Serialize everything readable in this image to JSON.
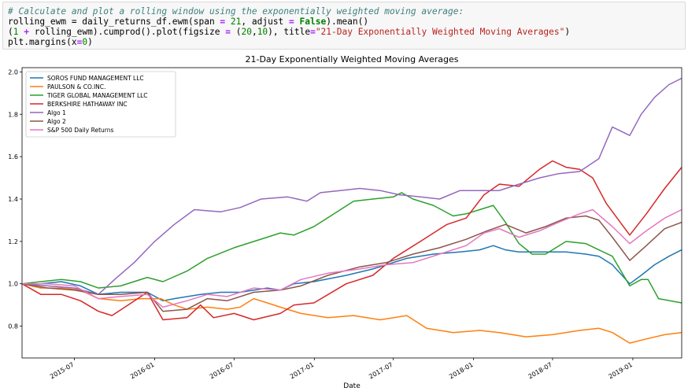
{
  "code": {
    "comment": "# Calculate and plot a rolling window using the exponentially weighted moving average:",
    "line2": {
      "a": "rolling_ewm = daily_returns_df.ewm(span ",
      "eq1": "=",
      "b": " ",
      "n21": "21",
      "c": ", adjust ",
      "eq2": "=",
      "d": " ",
      "kw": "False",
      "e": ").mean()"
    },
    "line3": {
      "a": "(",
      "one": "1",
      "b": " ",
      "plus": "+",
      "c": " rolling_ewm).cumprod().plot(figsize ",
      "eq": "=",
      "d": " (",
      "n20a": "20",
      "e": ",",
      "n10": "10",
      "f": "), title",
      "eq2": "=",
      "str": "\"21-Day Exponentially Weighted Moving Averages\"",
      "g": ")"
    },
    "line4": {
      "a": "plt.margins(x",
      "eq": "=",
      "zero": "0",
      "b": ")"
    }
  },
  "chart_data": {
    "type": "line",
    "title": "21-Day Exponentially Weighted Moving Averages",
    "xlabel": "Date",
    "ylabel": "",
    "x_range": [
      "2015-03-03",
      "2019-04-23"
    ],
    "ylim": [
      0.65,
      2.02
    ],
    "yticks": [
      0.8,
      1.0,
      1.2,
      1.4,
      1.6,
      1.8,
      2.0
    ],
    "ytick_labels": [
      "0.8",
      "1.0",
      "1.2",
      "1.4",
      "1.6",
      "1.8",
      "2.0"
    ],
    "xticks": [
      "2015-07-01",
      "2016-01-01",
      "2016-07-01",
      "2017-01-01",
      "2017-07-01",
      "2018-01-01",
      "2018-07-01",
      "2019-01-01"
    ],
    "xtick_labels": [
      "2015-07",
      "2016-01",
      "2016-07",
      "2017-01",
      "2017-07",
      "2018-01",
      "2018-07",
      "2019-01"
    ],
    "grid": false,
    "legend_position": "top-left",
    "series": [
      {
        "name": "SOROS FUND MANAGEMENT LLC",
        "color": "#1f77b4",
        "points": [
          [
            "2015-03-03",
            1.0
          ],
          [
            "2015-04-15",
            1.0
          ],
          [
            "2015-06-01",
            1.01
          ],
          [
            "2015-07-15",
            0.99
          ],
          [
            "2015-08-25",
            0.95
          ],
          [
            "2015-10-15",
            0.96
          ],
          [
            "2015-12-15",
            0.96
          ],
          [
            "2016-01-20",
            0.92
          ],
          [
            "2016-02-15",
            0.93
          ],
          [
            "2016-04-15",
            0.95
          ],
          [
            "2016-06-01",
            0.96
          ],
          [
            "2016-07-15",
            0.96
          ],
          [
            "2016-09-15",
            0.98
          ],
          [
            "2016-10-15",
            0.97
          ],
          [
            "2016-11-15",
            1.0
          ],
          [
            "2016-12-31",
            1.01
          ],
          [
            "2017-03-15",
            1.04
          ],
          [
            "2017-05-15",
            1.07
          ],
          [
            "2017-08-01",
            1.12
          ],
          [
            "2017-10-01",
            1.14
          ],
          [
            "2017-12-01",
            1.15
          ],
          [
            "2018-01-15",
            1.16
          ],
          [
            "2018-02-15",
            1.18
          ],
          [
            "2018-03-15",
            1.16
          ],
          [
            "2018-04-15",
            1.15
          ],
          [
            "2018-06-15",
            1.15
          ],
          [
            "2018-08-01",
            1.15
          ],
          [
            "2018-09-15",
            1.14
          ],
          [
            "2018-10-15",
            1.13
          ],
          [
            "2018-11-15",
            1.09
          ],
          [
            "2018-12-25",
            1.0
          ],
          [
            "2019-01-20",
            1.04
          ],
          [
            "2019-02-20",
            1.09
          ],
          [
            "2019-03-25",
            1.13
          ],
          [
            "2019-04-23",
            1.16
          ]
        ]
      },
      {
        "name": "PAULSON & CO.INC.",
        "color": "#ff7f0e",
        "points": [
          [
            "2015-03-03",
            1.0
          ],
          [
            "2015-04-15",
            0.98
          ],
          [
            "2015-06-01",
            0.98
          ],
          [
            "2015-07-15",
            0.97
          ],
          [
            "2015-08-25",
            0.93
          ],
          [
            "2015-10-15",
            0.92
          ],
          [
            "2015-12-01",
            0.93
          ],
          [
            "2016-01-15",
            0.93
          ],
          [
            "2016-02-15",
            0.9
          ],
          [
            "2016-03-15",
            0.88
          ],
          [
            "2016-05-01",
            0.89
          ],
          [
            "2016-06-15",
            0.88
          ],
          [
            "2016-07-15",
            0.89
          ],
          [
            "2016-08-15",
            0.93
          ],
          [
            "2016-09-15",
            0.91
          ],
          [
            "2016-10-15",
            0.89
          ],
          [
            "2016-12-01",
            0.86
          ],
          [
            "2017-02-01",
            0.84
          ],
          [
            "2017-04-01",
            0.85
          ],
          [
            "2017-06-01",
            0.83
          ],
          [
            "2017-08-01",
            0.85
          ],
          [
            "2017-09-15",
            0.79
          ],
          [
            "2017-11-15",
            0.77
          ],
          [
            "2018-01-15",
            0.78
          ],
          [
            "2018-03-01",
            0.77
          ],
          [
            "2018-05-01",
            0.75
          ],
          [
            "2018-07-01",
            0.76
          ],
          [
            "2018-09-01",
            0.78
          ],
          [
            "2018-10-15",
            0.79
          ],
          [
            "2018-11-15",
            0.77
          ],
          [
            "2018-12-25",
            0.72
          ],
          [
            "2019-02-01",
            0.74
          ],
          [
            "2019-03-15",
            0.76
          ],
          [
            "2019-04-23",
            0.77
          ]
        ]
      },
      {
        "name": "TIGER GLOBAL MANAGEMENT LLC",
        "color": "#2ca02c",
        "points": [
          [
            "2015-03-03",
            1.0
          ],
          [
            "2015-04-15",
            1.01
          ],
          [
            "2015-06-01",
            1.02
          ],
          [
            "2015-07-15",
            1.01
          ],
          [
            "2015-08-25",
            0.98
          ],
          [
            "2015-10-15",
            0.99
          ],
          [
            "2015-12-15",
            1.03
          ],
          [
            "2016-01-20",
            1.01
          ],
          [
            "2016-03-15",
            1.06
          ],
          [
            "2016-05-01",
            1.12
          ],
          [
            "2016-07-01",
            1.17
          ],
          [
            "2016-09-15",
            1.22
          ],
          [
            "2016-10-15",
            1.24
          ],
          [
            "2016-11-15",
            1.23
          ],
          [
            "2016-12-31",
            1.27
          ],
          [
            "2017-02-15",
            1.33
          ],
          [
            "2017-04-01",
            1.39
          ],
          [
            "2017-05-15",
            1.4
          ],
          [
            "2017-07-01",
            1.41
          ],
          [
            "2017-07-20",
            1.43
          ],
          [
            "2017-08-15",
            1.4
          ],
          [
            "2017-10-01",
            1.37
          ],
          [
            "2017-11-15",
            1.32
          ],
          [
            "2017-12-15",
            1.33
          ],
          [
            "2018-01-15",
            1.35
          ],
          [
            "2018-02-15",
            1.37
          ],
          [
            "2018-03-15",
            1.29
          ],
          [
            "2018-04-15",
            1.19
          ],
          [
            "2018-05-15",
            1.14
          ],
          [
            "2018-06-15",
            1.14
          ],
          [
            "2018-08-01",
            1.2
          ],
          [
            "2018-09-15",
            1.19
          ],
          [
            "2018-10-15",
            1.16
          ],
          [
            "2018-11-15",
            1.13
          ],
          [
            "2018-12-25",
            0.99
          ],
          [
            "2019-01-20",
            1.02
          ],
          [
            "2019-02-05",
            1.02
          ],
          [
            "2019-03-01",
            0.93
          ],
          [
            "2019-04-23",
            0.91
          ]
        ]
      },
      {
        "name": "BERKSHIRE HATHAWAY INC",
        "color": "#d62728",
        "points": [
          [
            "2015-03-03",
            1.0
          ],
          [
            "2015-04-15",
            0.95
          ],
          [
            "2015-06-01",
            0.95
          ],
          [
            "2015-07-15",
            0.92
          ],
          [
            "2015-08-25",
            0.87
          ],
          [
            "2015-09-25",
            0.85
          ],
          [
            "2015-11-01",
            0.9
          ],
          [
            "2015-12-15",
            0.96
          ],
          [
            "2016-01-20",
            0.83
          ],
          [
            "2016-03-15",
            0.84
          ],
          [
            "2016-04-15",
            0.9
          ],
          [
            "2016-05-15",
            0.84
          ],
          [
            "2016-07-01",
            0.86
          ],
          [
            "2016-08-15",
            0.83
          ],
          [
            "2016-10-15",
            0.86
          ],
          [
            "2016-11-15",
            0.9
          ],
          [
            "2016-12-31",
            0.91
          ],
          [
            "2017-03-15",
            1.0
          ],
          [
            "2017-05-15",
            1.04
          ],
          [
            "2017-07-01",
            1.12
          ],
          [
            "2017-09-01",
            1.2
          ],
          [
            "2017-11-01",
            1.28
          ],
          [
            "2017-12-15",
            1.31
          ],
          [
            "2018-01-25",
            1.42
          ],
          [
            "2018-03-01",
            1.47
          ],
          [
            "2018-04-15",
            1.46
          ],
          [
            "2018-06-01",
            1.54
          ],
          [
            "2018-07-01",
            1.58
          ],
          [
            "2018-08-01",
            1.55
          ],
          [
            "2018-09-01",
            1.54
          ],
          [
            "2018-10-01",
            1.5
          ],
          [
            "2018-11-01",
            1.38
          ],
          [
            "2018-12-25",
            1.23
          ],
          [
            "2019-02-01",
            1.33
          ],
          [
            "2019-03-15",
            1.45
          ],
          [
            "2019-04-23",
            1.55
          ]
        ]
      },
      {
        "name": "Algo 1",
        "color": "#9467bd",
        "points": [
          [
            "2015-03-03",
            1.0
          ],
          [
            "2015-05-01",
            0.99
          ],
          [
            "2015-07-01",
            0.98
          ],
          [
            "2015-08-25",
            0.95
          ],
          [
            "2015-10-01",
            1.02
          ],
          [
            "2015-11-15",
            1.1
          ],
          [
            "2016-01-01",
            1.2
          ],
          [
            "2016-02-15",
            1.28
          ],
          [
            "2016-04-01",
            1.35
          ],
          [
            "2016-06-01",
            1.34
          ],
          [
            "2016-07-15",
            1.36
          ],
          [
            "2016-09-01",
            1.4
          ],
          [
            "2016-11-01",
            1.41
          ],
          [
            "2016-12-15",
            1.39
          ],
          [
            "2017-01-15",
            1.43
          ],
          [
            "2017-03-01",
            1.44
          ],
          [
            "2017-04-15",
            1.45
          ],
          [
            "2017-06-01",
            1.44
          ],
          [
            "2017-07-15",
            1.42
          ],
          [
            "2017-09-01",
            1.41
          ],
          [
            "2017-10-15",
            1.4
          ],
          [
            "2017-12-01",
            1.44
          ],
          [
            "2018-01-15",
            1.44
          ],
          [
            "2018-03-01",
            1.44
          ],
          [
            "2018-04-15",
            1.47
          ],
          [
            "2018-06-01",
            1.5
          ],
          [
            "2018-07-15",
            1.52
          ],
          [
            "2018-09-01",
            1.53
          ],
          [
            "2018-10-15",
            1.59
          ],
          [
            "2018-11-15",
            1.74
          ],
          [
            "2018-12-25",
            1.7
          ],
          [
            "2019-01-20",
            1.8
          ],
          [
            "2019-02-20",
            1.88
          ],
          [
            "2019-03-25",
            1.94
          ],
          [
            "2019-04-23",
            1.97
          ]
        ]
      },
      {
        "name": "Algo 2",
        "color": "#8c564b",
        "points": [
          [
            "2015-03-03",
            1.0
          ],
          [
            "2015-05-01",
            0.98
          ],
          [
            "2015-07-01",
            0.97
          ],
          [
            "2015-08-25",
            0.95
          ],
          [
            "2015-10-15",
            0.95
          ],
          [
            "2015-12-15",
            0.96
          ],
          [
            "2016-01-20",
            0.87
          ],
          [
            "2016-03-15",
            0.88
          ],
          [
            "2016-05-01",
            0.93
          ],
          [
            "2016-06-15",
            0.92
          ],
          [
            "2016-08-15",
            0.96
          ],
          [
            "2016-10-15",
            0.97
          ],
          [
            "2016-12-01",
            0.99
          ],
          [
            "2017-02-01",
            1.04
          ],
          [
            "2017-04-15",
            1.08
          ],
          [
            "2017-06-15",
            1.1
          ],
          [
            "2017-08-15",
            1.14
          ],
          [
            "2017-10-15",
            1.17
          ],
          [
            "2017-12-15",
            1.21
          ],
          [
            "2018-02-01",
            1.25
          ],
          [
            "2018-03-15",
            1.28
          ],
          [
            "2018-05-01",
            1.24
          ],
          [
            "2018-06-15",
            1.27
          ],
          [
            "2018-08-01",
            1.31
          ],
          [
            "2018-09-15",
            1.32
          ],
          [
            "2018-10-15",
            1.3
          ],
          [
            "2018-11-15",
            1.22
          ],
          [
            "2018-12-25",
            1.11
          ],
          [
            "2019-02-01",
            1.18
          ],
          [
            "2019-03-15",
            1.26
          ],
          [
            "2019-04-23",
            1.29
          ]
        ]
      },
      {
        "name": "S&P 500 Daily Returns",
        "color": "#e377c2",
        "points": [
          [
            "2015-03-03",
            1.0
          ],
          [
            "2015-05-01",
            1.0
          ],
          [
            "2015-07-01",
            0.99
          ],
          [
            "2015-08-25",
            0.93
          ],
          [
            "2015-10-15",
            0.94
          ],
          [
            "2015-12-15",
            0.95
          ],
          [
            "2016-01-20",
            0.89
          ],
          [
            "2016-03-15",
            0.92
          ],
          [
            "2016-05-01",
            0.95
          ],
          [
            "2016-06-15",
            0.94
          ],
          [
            "2016-08-15",
            0.98
          ],
          [
            "2016-10-15",
            0.97
          ],
          [
            "2016-12-01",
            1.02
          ],
          [
            "2017-02-01",
            1.05
          ],
          [
            "2017-04-15",
            1.07
          ],
          [
            "2017-06-15",
            1.09
          ],
          [
            "2017-08-15",
            1.1
          ],
          [
            "2017-10-15",
            1.14
          ],
          [
            "2017-12-15",
            1.18
          ],
          [
            "2018-01-25",
            1.24
          ],
          [
            "2018-03-01",
            1.26
          ],
          [
            "2018-04-15",
            1.22
          ],
          [
            "2018-06-01",
            1.25
          ],
          [
            "2018-07-15",
            1.29
          ],
          [
            "2018-09-01",
            1.33
          ],
          [
            "2018-10-01",
            1.35
          ],
          [
            "2018-11-15",
            1.27
          ],
          [
            "2018-12-25",
            1.19
          ],
          [
            "2019-02-01",
            1.25
          ],
          [
            "2019-03-15",
            1.31
          ],
          [
            "2019-04-23",
            1.35
          ]
        ]
      }
    ]
  }
}
